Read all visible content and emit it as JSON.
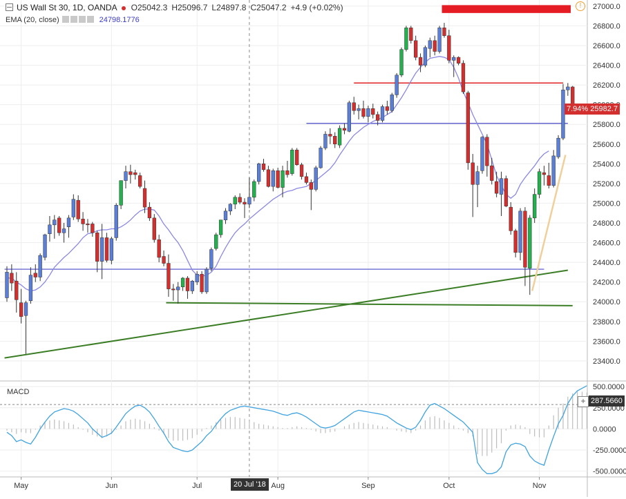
{
  "header": {
    "symbol": "US Wall St 30, 1D, OANDA",
    "open_label": "O",
    "open": "25042.3",
    "high_label": "H",
    "high": "25096.7",
    "low_label": "L",
    "low": "24897.8",
    "close_label": "C",
    "close": "25047.2",
    "change": "+4.9 (+0.02%)",
    "ema_label": "EMA (20, close)",
    "ema_value": "24798.1776",
    "warning_glyph": "!"
  },
  "macd_label": "MACD",
  "price_tag": {
    "pct": "7.94%",
    "price": "25982.7"
  },
  "macd_tag": "287.5660",
  "crosshair_date": "20 Jul '18",
  "colors": {
    "up": "#22b14c",
    "down": "#d32f2f",
    "ema": "#8a87e6",
    "hline_blue": "#4a4ac8",
    "hline_red": "#e02020",
    "trend_green": "#3a7d24",
    "trend_tan": "#f0d09a",
    "macd_line": "#3fa3e0",
    "hist": "#bdbdbd"
  },
  "chart_data": [
    {
      "type": "candlestick",
      "title": "US Wall St 30, 1D, OANDA",
      "x_ticks": [
        "May",
        "Jun",
        "Jul",
        "20 Jul '18",
        "Aug",
        "Sep",
        "Oct",
        "Nov"
      ],
      "y_ticks": [
        "23400.0",
        "23600.0",
        "23800.0",
        "24000.0",
        "24200.0",
        "24400.0",
        "24600.0",
        "24800.0",
        "25000.0",
        "25200.0",
        "25400.0",
        "25600.0",
        "25800.0",
        "26000.0",
        "26200.0",
        "26400.0",
        "26600.0",
        "26800.0",
        "27000.0"
      ],
      "ylim": [
        23210,
        27020
      ],
      "price_line": 25982.7,
      "price_change_pct": "7.94%",
      "grid": true,
      "ohlc": [
        [
          24040,
          24360,
          24000,
          24300
        ],
        [
          24290,
          24380,
          24110,
          24190
        ],
        [
          24210,
          24300,
          23890,
          24020
        ],
        [
          23990,
          24130,
          23780,
          23850
        ],
        [
          23860,
          24010,
          23470,
          23990
        ],
        [
          24010,
          24350,
          23980,
          24270
        ],
        [
          24290,
          24380,
          24200,
          24250
        ],
        [
          24250,
          24490,
          24210,
          24470
        ],
        [
          24450,
          24690,
          24420,
          24680
        ],
        [
          24690,
          24870,
          24610,
          24780
        ],
        [
          24780,
          24880,
          24640,
          24830
        ],
        [
          24850,
          24870,
          24670,
          24700
        ],
        [
          24700,
          24800,
          24600,
          24740
        ],
        [
          24760,
          24880,
          24650,
          24850
        ],
        [
          24860,
          25090,
          24830,
          25040
        ],
        [
          25030,
          25080,
          24810,
          24840
        ],
        [
          24840,
          24910,
          24720,
          24790
        ],
        [
          24790,
          24840,
          24700,
          24780
        ],
        [
          24790,
          24810,
          24660,
          24700
        ],
        [
          24700,
          24720,
          24300,
          24410
        ],
        [
          24410,
          24790,
          24230,
          24650
        ],
        [
          24650,
          24700,
          24400,
          24420
        ],
        [
          24420,
          24660,
          24380,
          24640
        ],
        [
          24650,
          25000,
          24620,
          24980
        ],
        [
          24980,
          25230,
          24940,
          25230
        ],
        [
          25230,
          25380,
          25150,
          25320
        ],
        [
          25320,
          25390,
          25200,
          25290
        ],
        [
          25310,
          25340,
          25240,
          25290
        ],
        [
          25280,
          25310,
          25150,
          25170
        ],
        [
          25150,
          25230,
          24900,
          24960
        ],
        [
          24960,
          25010,
          24820,
          24850
        ],
        [
          24850,
          24890,
          24600,
          24630
        ],
        [
          24630,
          24680,
          24400,
          24450
        ],
        [
          24460,
          24520,
          24360,
          24390
        ],
        [
          24390,
          24480,
          24050,
          24130
        ],
        [
          24130,
          24180,
          24010,
          24120
        ],
        [
          24120,
          24200,
          23980,
          24150
        ],
        [
          24150,
          24250,
          24110,
          24240
        ],
        [
          24240,
          24260,
          24030,
          24110
        ],
        [
          24110,
          24220,
          24080,
          24210
        ],
        [
          24200,
          24310,
          24170,
          24280
        ],
        [
          24280,
          24310,
          24080,
          24100
        ],
        [
          24100,
          24350,
          24080,
          24330
        ],
        [
          24340,
          24550,
          24310,
          24530
        ],
        [
          24540,
          24700,
          24520,
          24680
        ],
        [
          24680,
          24830,
          24650,
          24830
        ],
        [
          24830,
          24950,
          24790,
          24920
        ],
        [
          24920,
          25000,
          24880,
          24990
        ],
        [
          24990,
          25080,
          24940,
          25060
        ],
        [
          25060,
          25100,
          24990,
          25010
        ],
        [
          25010,
          25050,
          24850,
          24990
        ],
        [
          24990,
          25260,
          24950,
          25060
        ],
        [
          25060,
          25240,
          25020,
          25220
        ],
        [
          25220,
          25410,
          25190,
          25400
        ],
        [
          25400,
          25450,
          25320,
          25340
        ],
        [
          25340,
          25380,
          25160,
          25170
        ],
        [
          25170,
          25350,
          25120,
          25330
        ],
        [
          25330,
          25360,
          25150,
          25160
        ],
        [
          25160,
          25380,
          25060,
          25330
        ],
        [
          25330,
          25430,
          25260,
          25290
        ],
        [
          25300,
          25560,
          25280,
          25540
        ],
        [
          25540,
          25560,
          25380,
          25390
        ],
        [
          25390,
          25410,
          25240,
          25270
        ],
        [
          25270,
          25310,
          25190,
          25210
        ],
        [
          25210,
          25240,
          24930,
          25140
        ],
        [
          25140,
          25380,
          25120,
          25360
        ],
        [
          25360,
          25580,
          25350,
          25560
        ],
        [
          25560,
          25730,
          25540,
          25700
        ],
        [
          25700,
          25760,
          25600,
          25680
        ],
        [
          25680,
          25720,
          25560,
          25600
        ],
        [
          25590,
          25790,
          25560,
          25760
        ],
        [
          25760,
          25810,
          25700,
          25740
        ],
        [
          25730,
          26040,
          25720,
          26020
        ],
        [
          26020,
          26080,
          25900,
          25940
        ],
        [
          25940,
          26000,
          25850,
          25960
        ],
        [
          25960,
          26040,
          25860,
          25880
        ],
        [
          25880,
          25990,
          25820,
          25960
        ],
        [
          25960,
          26010,
          25860,
          25900
        ],
        [
          25900,
          25930,
          25790,
          25840
        ],
        [
          25840,
          26000,
          25820,
          25980
        ],
        [
          25980,
          26040,
          25900,
          25940
        ],
        [
          25940,
          26120,
          25920,
          26100
        ],
        [
          26100,
          26320,
          26070,
          26300
        ],
        [
          26300,
          26580,
          26280,
          26560
        ],
        [
          26560,
          26800,
          26540,
          26780
        ],
        [
          26780,
          26800,
          26620,
          26650
        ],
        [
          26650,
          26700,
          26450,
          26480
        ],
        [
          26480,
          26520,
          26330,
          26400
        ],
        [
          26400,
          26600,
          26380,
          26580
        ],
        [
          26570,
          26680,
          26480,
          26650
        ],
        [
          26650,
          26700,
          26500,
          26540
        ],
        [
          26540,
          26800,
          26520,
          26780
        ],
        [
          26780,
          26830,
          26680,
          26700
        ],
        [
          26700,
          26760,
          26420,
          26450
        ],
        [
          26450,
          26500,
          26280,
          26480
        ],
        [
          26480,
          26490,
          26400,
          26420
        ],
        [
          26420,
          26450,
          26110,
          26130
        ],
        [
          26120,
          26140,
          25340,
          25410
        ],
        [
          25410,
          25500,
          24860,
          25190
        ],
        [
          25190,
          25380,
          24960,
          25320
        ],
        [
          25330,
          25680,
          25300,
          25670
        ],
        [
          25670,
          25700,
          25270,
          25380
        ],
        [
          25380,
          25460,
          25190,
          25230
        ],
        [
          25220,
          25320,
          25060,
          25100
        ],
        [
          25090,
          25320,
          24870,
          25250
        ],
        [
          25250,
          25280,
          24960,
          24970
        ],
        [
          24960,
          25010,
          24680,
          24720
        ],
        [
          24720,
          24740,
          24450,
          24500
        ],
        [
          24500,
          24950,
          24420,
          24920
        ],
        [
          24920,
          24960,
          24160,
          24350
        ],
        [
          24340,
          24880,
          24070,
          24850
        ],
        [
          24850,
          25150,
          24800,
          25090
        ],
        [
          25090,
          25350,
          25050,
          25320
        ],
        [
          25310,
          25380,
          25180,
          25290
        ],
        [
          25280,
          25410,
          25150,
          25180
        ],
        [
          25180,
          25540,
          25160,
          25480
        ],
        [
          25470,
          25690,
          25450,
          25660
        ],
        [
          25660,
          26210,
          25640,
          26150
        ],
        [
          26150,
          26220,
          26090,
          26180
        ],
        [
          26180,
          26190,
          25930,
          25983
        ]
      ],
      "ema": {
        "name": "EMA (20, close)",
        "values": [
          24240,
          24240,
          24200,
          24170,
          24130,
          24110,
          24120,
          24150,
          24200,
          24270,
          24350,
          24400,
          24450,
          24490,
          24540,
          24590,
          24650,
          24690,
          24700,
          24720,
          24730,
          24730,
          24740,
          24740,
          24760,
          24790,
          24830,
          24880,
          24920,
          24940,
          24940,
          24930,
          24870,
          24790,
          24730,
          24660,
          24600,
          24520,
          24420,
          24320,
          24270,
          24260,
          24270,
          24300,
          24360,
          24460,
          24550,
          24630,
          24700,
          24750,
          24790,
          24840,
          24880,
          24920,
          24960,
          25000,
          25040,
          25070,
          25100,
          25120,
          25130,
          25150,
          25160,
          25170,
          25200,
          25230,
          25270,
          25310,
          25350,
          25410,
          25490,
          25560,
          25630,
          25690,
          25730,
          25770,
          25800,
          25830,
          25850,
          25870,
          25900,
          25930,
          26000,
          26070,
          26150,
          26240,
          26320,
          26380,
          26430,
          26470,
          26480,
          26490,
          26480,
          26460,
          26380,
          26270,
          26130,
          26020,
          25900,
          25800,
          25700,
          25600,
          25440,
          25280,
          25180,
          25090,
          25050,
          25090,
          25190,
          25260,
          25320,
          25380,
          25450,
          25500,
          25530
        ]
      }
    },
    {
      "type": "line",
      "title": "MACD",
      "y_ticks": [
        "-500.0000",
        "-250.0000",
        "0.0000",
        "250.0000",
        "500.0000"
      ],
      "ylim": [
        -560,
        550
      ],
      "reference_value": 287.566,
      "macd": [
        -40,
        -80,
        -150,
        -130,
        -160,
        -180,
        -100,
        0,
        80,
        150,
        200,
        220,
        240,
        230,
        210,
        170,
        120,
        70,
        0,
        -50,
        -100,
        -80,
        -50,
        20,
        100,
        180,
        230,
        270,
        280,
        250,
        200,
        120,
        30,
        -50,
        -150,
        -220,
        -240,
        -260,
        -270,
        -250,
        -200,
        -150,
        -80,
        -30,
        50,
        120,
        180,
        220,
        240,
        260,
        270,
        260,
        250,
        240,
        230,
        220,
        210,
        190,
        170,
        160,
        180,
        190,
        170,
        140,
        100,
        60,
        20,
        10,
        20,
        40,
        80,
        120,
        160,
        200,
        220,
        210,
        200,
        190,
        180,
        170,
        150,
        110,
        70,
        40,
        10,
        -10,
        20,
        100,
        200,
        280,
        300,
        270,
        240,
        200,
        160,
        120,
        80,
        20,
        -40,
        -400,
        -480,
        -530,
        -530,
        -510,
        -450,
        -270,
        -190,
        -170,
        -180,
        -210,
        -320,
        -380,
        -410,
        -430,
        -250,
        -90,
        60,
        160,
        300,
        390,
        450,
        480,
        510
      ],
      "histogram": [
        -20,
        -40,
        -60,
        -40,
        -50,
        -50,
        -10,
        40,
        80,
        100,
        110,
        100,
        90,
        70,
        50,
        20,
        -10,
        -40,
        -70,
        -90,
        -110,
        -90,
        -60,
        -10,
        40,
        90,
        110,
        120,
        110,
        90,
        60,
        20,
        -20,
        -60,
        -110,
        -140,
        -140,
        -140,
        -130,
        -110,
        -70,
        -30,
        10,
        40,
        80,
        110,
        130,
        140,
        140,
        130,
        120,
        100,
        80,
        60,
        50,
        40,
        30,
        20,
        10,
        10,
        20,
        30,
        20,
        10,
        -10,
        -30,
        -50,
        -50,
        -40,
        -30,
        0,
        30,
        50,
        70,
        80,
        70,
        60,
        50,
        40,
        30,
        20,
        0,
        -20,
        -30,
        -40,
        -50,
        -20,
        40,
        100,
        140,
        150,
        130,
        100,
        70,
        40,
        10,
        -20,
        -50,
        -90,
        -300,
        -320,
        -320,
        -280,
        -230,
        -170,
        -20,
        40,
        50,
        40,
        20,
        -60,
        -90,
        -100,
        -100,
        40,
        160,
        250,
        300,
        380,
        420,
        440,
        440,
        430
      ]
    }
  ]
}
